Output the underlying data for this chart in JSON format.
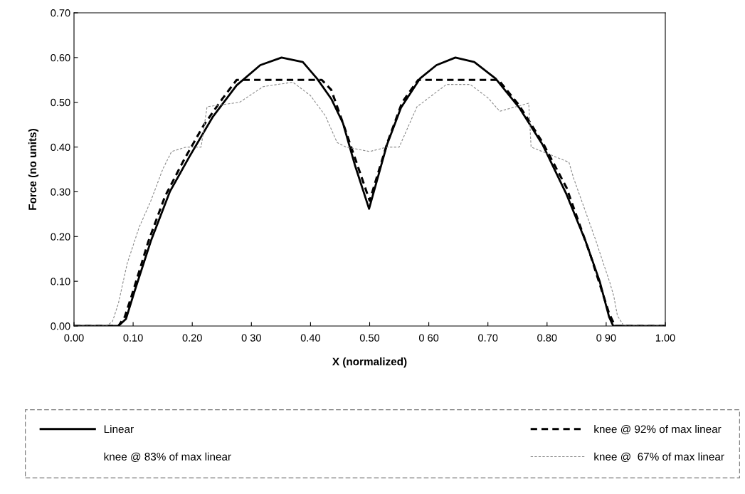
{
  "chart_data": {
    "type": "line",
    "xlabel": "X (normalized)",
    "ylabel": "Force (no units)",
    "xlim": [
      0,
      1
    ],
    "ylim": [
      0,
      0.7
    ],
    "xticks": [
      {
        "value": 0,
        "label": "0.00"
      },
      {
        "value": 0.1,
        "label": "0.10"
      },
      {
        "value": 0.2,
        "label": "0.20"
      },
      {
        "value": 0.3,
        "label": "0 30"
      },
      {
        "value": 0.4,
        "label": "0.40"
      },
      {
        "value": 0.5,
        "label": "0.50"
      },
      {
        "value": 0.6,
        "label": "0 60"
      },
      {
        "value": 0.7,
        "label": "0.70"
      },
      {
        "value": 0.8,
        "label": "0.80"
      },
      {
        "value": 0.9,
        "label": "0 90"
      },
      {
        "value": 1,
        "label": "1.00"
      }
    ],
    "yticks": [
      {
        "value": 0,
        "label": "0.00"
      },
      {
        "value": 0.1,
        "label": "0.10"
      },
      {
        "value": 0.2,
        "label": "0.20"
      },
      {
        "value": 0.3,
        "label": "0.30"
      },
      {
        "value": 0.4,
        "label": "0.40"
      },
      {
        "value": 0.5,
        "label": "0.50"
      },
      {
        "value": 0.6,
        "label": "0.60"
      },
      {
        "value": 0.7,
        "label": "0.70"
      }
    ],
    "grid": false,
    "legend": "bottom",
    "marker": "none",
    "series": [
      {
        "name": "Linear",
        "color": "#000000",
        "line_style": "solid",
        "x": [
          0,
          0.075,
          0.088,
          0.102,
          0.13,
          0.162,
          0.195,
          0.235,
          0.275,
          0.315,
          0.351,
          0.387,
          0.411,
          0.435,
          0.455,
          0.475,
          0.499,
          0.529,
          0.553,
          0.585,
          0.613,
          0.645,
          0.677,
          0.713,
          0.753,
          0.793,
          0.833,
          0.865,
          0.889,
          0.905,
          0.912,
          1
        ],
        "values": [
          0,
          0,
          0.016,
          0.076,
          0.19,
          0.3,
          0.378,
          0.468,
          0.538,
          0.583,
          0.6,
          0.59,
          0.553,
          0.508,
          0.453,
          0.36,
          0.262,
          0.404,
          0.488,
          0.553,
          0.583,
          0.6,
          0.59,
          0.553,
          0.488,
          0.404,
          0.294,
          0.19,
          0.1,
          0.02,
          0,
          0
        ]
      },
      {
        "name": "knee @ 92% of max linear",
        "color": "#000000",
        "line_style": "dashed",
        "x": [
          0,
          0.075,
          0.086,
          0.1,
          0.126,
          0.154,
          0.187,
          0.219,
          0.251,
          0.275,
          0.419,
          0.435,
          0.455,
          0.5,
          0.53,
          0.555,
          0.582,
          0.718,
          0.753,
          0.793,
          0.833,
          0.873,
          0.905,
          0.915,
          1
        ],
        "values": [
          0,
          0,
          0.021,
          0.078,
          0.19,
          0.29,
          0.374,
          0.448,
          0.508,
          0.55,
          0.55,
          0.528,
          0.453,
          0.28,
          0.41,
          0.5,
          0.55,
          0.55,
          0.493,
          0.409,
          0.309,
          0.16,
          0.028,
          0,
          0
        ]
      },
      {
        "name": "knee @ 83% of max linear"
      },
      {
        "name": "knee @  67% of max linear",
        "color": "#8a8a8a",
        "line_style": "dashed",
        "x": [
          0,
          0.055,
          0.065,
          0.075,
          0.09,
          0.11,
          0.13,
          0.15,
          0.165,
          0.19,
          0.215,
          0.225,
          0.28,
          0.32,
          0.37,
          0.4,
          0.425,
          0.445,
          0.46,
          0.5,
          0.53,
          0.55,
          0.58,
          0.63,
          0.67,
          0.7,
          0.72,
          0.769,
          0.773,
          0.837,
          0.845,
          0.882,
          0.894,
          0.906,
          0.913,
          0.919,
          0.93,
          1
        ],
        "values": [
          0,
          0,
          0.01,
          0.05,
          0.14,
          0.22,
          0.28,
          0.35,
          0.39,
          0.4,
          0.4,
          0.49,
          0.5,
          0.535,
          0.545,
          0.515,
          0.47,
          0.41,
          0.4,
          0.39,
          0.4,
          0.4,
          0.49,
          0.54,
          0.54,
          0.51,
          0.48,
          0.498,
          0.4,
          0.366,
          0.33,
          0.193,
          0.145,
          0.098,
          0.066,
          0.023,
          0,
          0
        ]
      }
    ]
  }
}
